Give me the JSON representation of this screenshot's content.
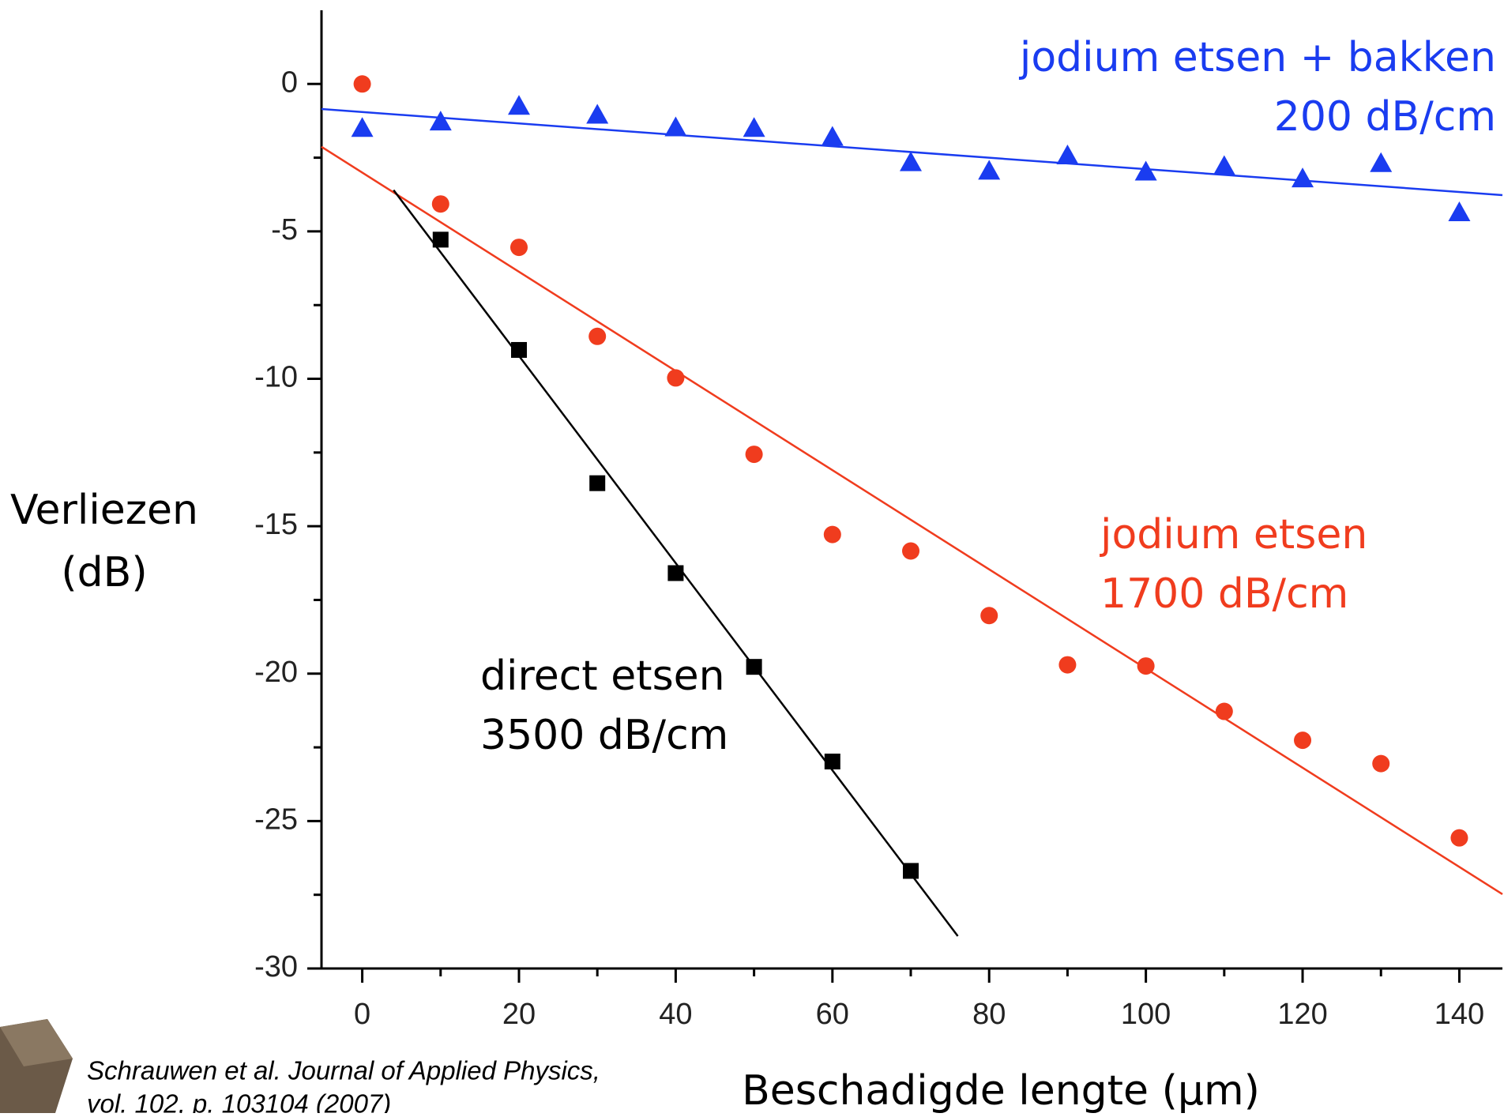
{
  "chart_data": {
    "type": "scatter",
    "xlabel": "Beschadigde lengte (µm)",
    "ylabel": [
      "Verliezen",
      "(dB)"
    ],
    "citation": [
      "Schrauwen et al. Journal of Applied Physics,",
      "vol. 102, p. 103104 (2007)"
    ],
    "xlim": [
      -5.2,
      145.5
    ],
    "ylim": [
      -30,
      2.5
    ],
    "xticks": [
      0,
      20,
      40,
      60,
      80,
      100,
      120,
      140
    ],
    "xticks_minor": [
      10,
      30,
      50,
      70,
      90,
      110,
      130
    ],
    "yticks": [
      0,
      -5,
      -10,
      -15,
      -20,
      -25,
      -30
    ],
    "yticks_minor": [
      -2.5,
      -7.5,
      -12.5,
      -17.5,
      -22.5,
      -27.5
    ],
    "series": [
      {
        "marker": "triangle",
        "color": "#1a3cf0",
        "x": [
          0,
          10,
          20,
          30,
          40,
          50,
          60,
          70,
          80,
          90,
          100,
          110,
          120,
          130,
          140
        ],
        "values": [
          -1.5,
          -1.28,
          -0.75,
          -1.05,
          -1.48,
          -1.5,
          -1.8,
          -2.66,
          -2.95,
          -2.43,
          -2.98,
          -2.79,
          -3.21,
          -2.69,
          -4.36
        ]
      },
      {
        "marker": "circle",
        "color": "#f03c1e",
        "x": [
          0,
          10,
          20,
          30,
          40,
          50,
          60,
          70,
          80,
          90,
          100,
          110,
          120,
          130,
          140
        ],
        "values": [
          0,
          -4.07,
          -5.54,
          -8.56,
          -9.97,
          -12.56,
          -15.28,
          -15.84,
          -18.03,
          -19.7,
          -19.74,
          -21.28,
          -22.26,
          -23.05,
          -25.57
        ]
      },
      {
        "marker": "square",
        "color": "#000000",
        "x": [
          10,
          20,
          30,
          40,
          50,
          60,
          70
        ],
        "values": [
          -5.28,
          -9.02,
          -13.54,
          -16.59,
          -19.77,
          -22.98,
          -26.69
        ]
      }
    ],
    "fits": [
      {
        "color": "#1a3cf0",
        "x": [
          -5.2,
          145.5
        ],
        "values": [
          -0.85,
          -3.77
        ]
      },
      {
        "color": "#f03c1e",
        "x": [
          -5.2,
          145.5
        ],
        "values": [
          -2.13,
          -27.48
        ]
      },
      {
        "color": "#000000",
        "x": [
          4,
          76
        ],
        "values": [
          -3.6,
          -28.9
        ]
      }
    ],
    "annotations": [
      {
        "lines": [
          "jodium etsen + bakken",
          "200 dB/cm"
        ],
        "color": "#1a3cf0",
        "anchor": "end"
      },
      {
        "lines": [
          "jodium etsen",
          "1700 dB/cm"
        ],
        "color": "#f03c1e",
        "anchor": "start"
      },
      {
        "lines": [
          "direct etsen",
          "3500 dB/cm"
        ],
        "color": "#000000",
        "anchor": "start"
      }
    ]
  }
}
